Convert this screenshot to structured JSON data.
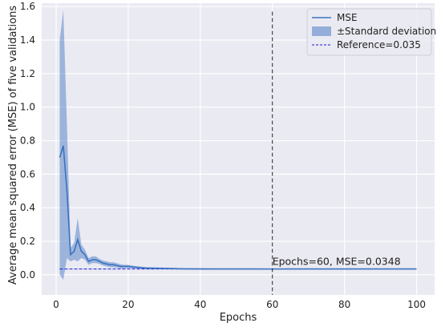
{
  "chart_data": {
    "type": "line",
    "title": "",
    "xlabel": "Epochs",
    "ylabel": "Average mean squared error (MSE) of five validations",
    "xlim": [
      -4,
      105
    ],
    "ylim": [
      -0.12,
      1.62
    ],
    "xticks": [
      0,
      20,
      40,
      60,
      80,
      100
    ],
    "yticks": [
      0.0,
      0.2,
      0.4,
      0.6,
      0.8,
      1.0,
      1.2,
      1.4,
      1.6
    ],
    "xtick_labels": [
      "0",
      "20",
      "40",
      "60",
      "80",
      "100"
    ],
    "ytick_labels": [
      "0.0",
      "0.2",
      "0.4",
      "0.6",
      "0.8",
      "1.0",
      "1.2",
      "1.4",
      "1.6"
    ],
    "grid": true,
    "legend_position": "top-right",
    "background": "#eaeaf2",
    "series": [
      {
        "name": "MSE",
        "kind": "line",
        "color": "#3b73c0",
        "x": [
          1,
          2,
          3,
          4,
          5,
          6,
          7,
          8,
          9,
          10,
          11,
          12,
          13,
          14,
          15,
          16,
          17,
          18,
          19,
          20,
          22,
          25,
          30,
          35,
          40,
          45,
          50,
          55,
          60,
          65,
          70,
          75,
          80,
          85,
          90,
          95,
          100
        ],
        "y": [
          0.7,
          0.77,
          0.5,
          0.12,
          0.14,
          0.21,
          0.14,
          0.12,
          0.08,
          0.09,
          0.09,
          0.08,
          0.07,
          0.065,
          0.06,
          0.06,
          0.055,
          0.05,
          0.05,
          0.05,
          0.045,
          0.04,
          0.038,
          0.036,
          0.035,
          0.035,
          0.035,
          0.035,
          0.0348,
          0.035,
          0.035,
          0.035,
          0.035,
          0.035,
          0.035,
          0.035,
          0.035
        ]
      },
      {
        "name": "±Standard deviation",
        "kind": "band",
        "color": "#5b86c8",
        "x": [
          1,
          2,
          3,
          4,
          5,
          6,
          7,
          8,
          9,
          10,
          11,
          12,
          13,
          14,
          15,
          16,
          17,
          18,
          19,
          20,
          22,
          25,
          30,
          35,
          40,
          45,
          50,
          55,
          60,
          65,
          70,
          75,
          80,
          85,
          90,
          95,
          100
        ],
        "upper": [
          1.4,
          1.58,
          0.9,
          0.16,
          0.19,
          0.34,
          0.18,
          0.15,
          0.1,
          0.11,
          0.11,
          0.095,
          0.085,
          0.08,
          0.075,
          0.075,
          0.068,
          0.062,
          0.06,
          0.06,
          0.052,
          0.046,
          0.043,
          0.04,
          0.039,
          0.038,
          0.038,
          0.038,
          0.038,
          0.038,
          0.038,
          0.038,
          0.038,
          0.038,
          0.038,
          0.038,
          0.038
        ],
        "lower": [
          0.0,
          -0.03,
          0.1,
          0.08,
          0.09,
          0.08,
          0.1,
          0.09,
          0.06,
          0.07,
          0.07,
          0.065,
          0.055,
          0.05,
          0.045,
          0.045,
          0.042,
          0.038,
          0.04,
          0.04,
          0.038,
          0.034,
          0.033,
          0.032,
          0.031,
          0.032,
          0.032,
          0.032,
          0.032,
          0.032,
          0.032,
          0.032,
          0.032,
          0.032,
          0.032,
          0.032,
          0.032
        ]
      },
      {
        "name": "Reference=0.035",
        "kind": "hline",
        "color": "#1a1adc",
        "x": [
          1,
          60
        ],
        "y": 0.035
      }
    ],
    "vline": {
      "x": 60,
      "y_top": 1.57,
      "color": "#222222"
    },
    "annotation": {
      "text": "Epochs=60, MSE=0.0348",
      "x": 60,
      "y": 0.0348
    }
  }
}
